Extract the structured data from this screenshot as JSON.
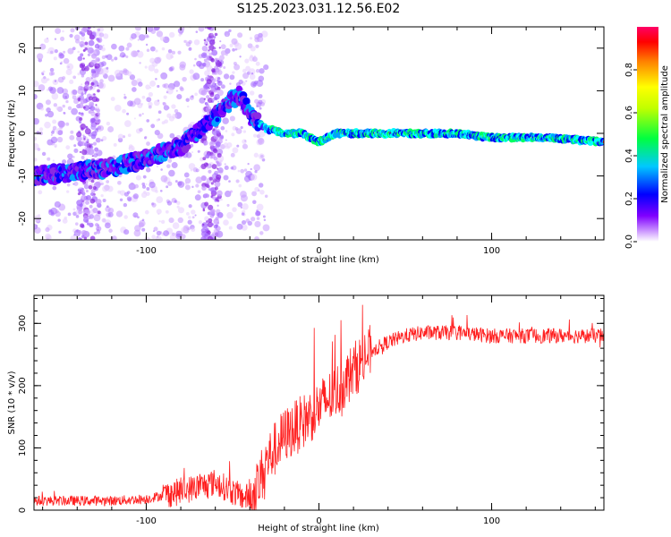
{
  "title": "S125.2023.031.12.56.E02",
  "chart_data": [
    {
      "type": "heatmap",
      "xlabel": "Height of straight line (km)",
      "ylabel": "Frequency (Hz)",
      "xlim": [
        -165,
        165
      ],
      "ylim": [
        -25,
        25
      ],
      "xticks": [
        -100,
        0,
        100
      ],
      "yticks": [
        -20,
        -10,
        0,
        10,
        20
      ],
      "colorbar": {
        "label": "Normalized spectral amplitude",
        "range": [
          0,
          1
        ],
        "ticks": [
          "0.0",
          "0.2",
          "0.4",
          "0.6",
          "0.8"
        ]
      },
      "ridge": {
        "x": [
          -165,
          -140,
          -120,
          -100,
          -80,
          -60,
          -50,
          -45,
          -40,
          -30,
          -20,
          -10,
          -5,
          0,
          10,
          20,
          40,
          60,
          80,
          100,
          130,
          165
        ],
        "y": [
          -10,
          -9,
          -8,
          -6,
          -3,
          4,
          8,
          9,
          4,
          1,
          0,
          0,
          -1,
          -2,
          0,
          0,
          0,
          0,
          0,
          -1,
          -1,
          -2
        ]
      },
      "colors": [
        "#7f00ff",
        "#0000ff",
        "#00c8ff",
        "#00ff00",
        "#ffff00",
        "#ff0000",
        "#ff0066"
      ]
    },
    {
      "type": "line",
      "xlabel": "Height of straight line (km)",
      "ylabel": "SNR (10 * v/v)",
      "xlim": [
        -165,
        165
      ],
      "ylim": [
        0,
        345
      ],
      "xticks": [
        -100,
        0,
        100
      ],
      "yticks": [
        0,
        100,
        200,
        300
      ],
      "trend": {
        "x": [
          -165,
          -120,
          -100,
          -80,
          -60,
          -45,
          -38,
          -30,
          -20,
          -10,
          0,
          10,
          20,
          30,
          40,
          50,
          60,
          80,
          100,
          130,
          165
        ],
        "y": [
          15,
          15,
          18,
          30,
          45,
          22,
          20,
          80,
          120,
          140,
          165,
          190,
          225,
          255,
          270,
          280,
          285,
          285,
          280,
          280,
          280
        ]
      },
      "color": "#ff2020"
    }
  ]
}
